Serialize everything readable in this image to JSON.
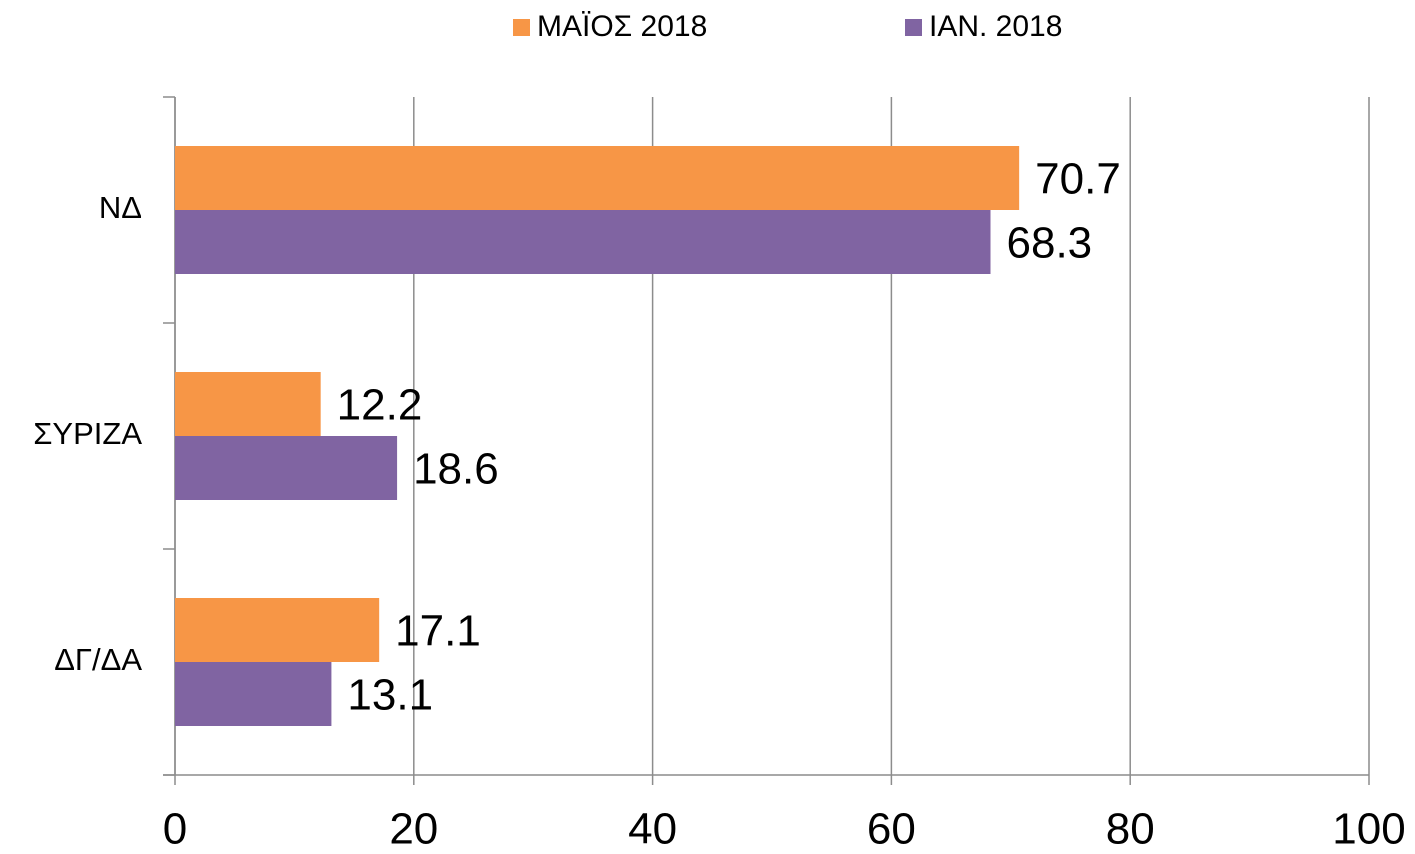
{
  "chart_data": {
    "type": "hbar",
    "categories": [
      "ΝΔ",
      "ΣΥΡΙΖΑ",
      "ΔΓ/ΔΑ"
    ],
    "series": [
      {
        "name": "ΜΑΪΟΣ 2018",
        "color": "#f79646",
        "values": [
          70.7,
          12.2,
          17.1
        ]
      },
      {
        "name": "ΙΑΝ. 2018",
        "color": "#8064a2",
        "values": [
          68.3,
          18.6,
          13.1
        ]
      }
    ],
    "xlim": [
      0,
      100
    ],
    "xticks": [
      0,
      20,
      40,
      60,
      80,
      100
    ],
    "grid": true,
    "legend": "top"
  }
}
